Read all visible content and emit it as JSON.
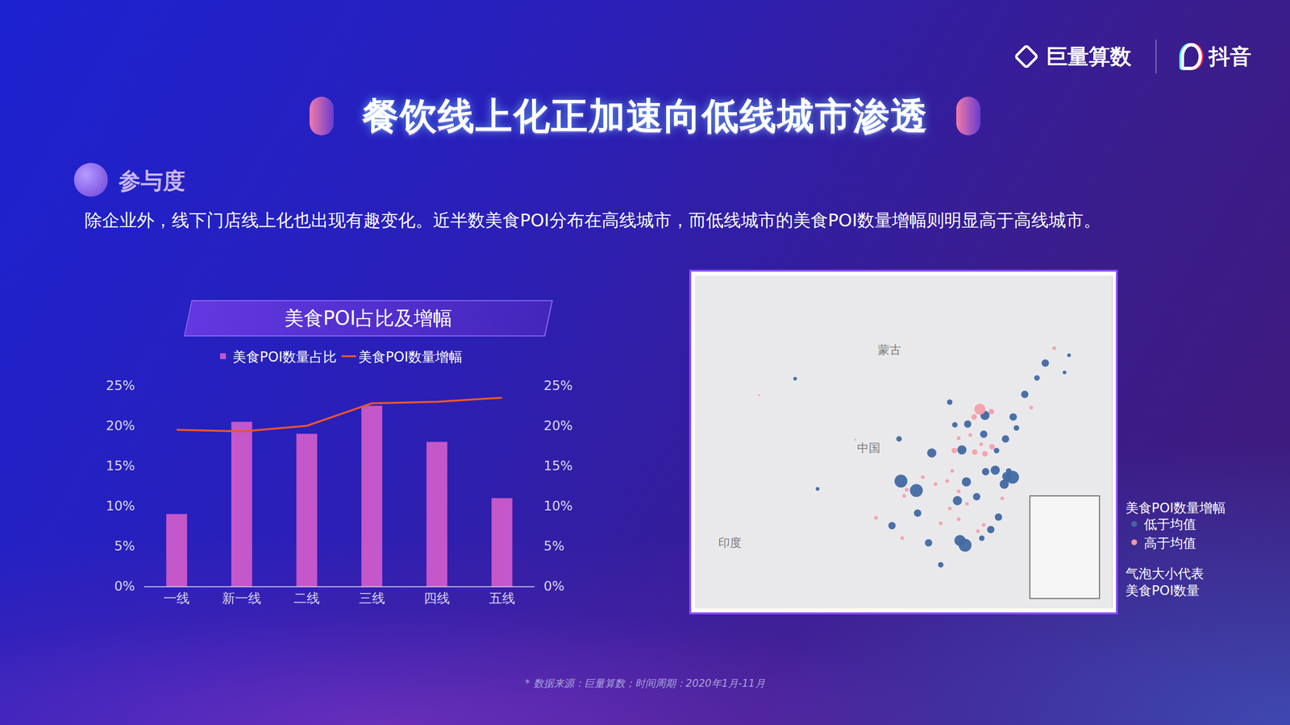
{
  "header": {
    "brands": [
      "巨量算数",
      "抖音"
    ],
    "title": "餐饮线上化正加速向低线城市渗透",
    "section": "参与度",
    "description": "除企业外，线下门店线上化也出现有趣变化。近半数美食POI分布在高线城市，而低线城市的美食POI数量增幅则明显高于高线城市。"
  },
  "chart_data": [
    {
      "type": "bar",
      "title": "美食POI占比及增幅",
      "categories": [
        "一线",
        "新一线",
        "二线",
        "三线",
        "四线",
        "五线"
      ],
      "series": [
        {
          "name": "美食POI数量占比",
          "type": "bar",
          "color": "#c457c9",
          "values": [
            9,
            20.5,
            19,
            22.5,
            18,
            11
          ]
        },
        {
          "name": "美食POI数量增幅",
          "type": "line",
          "color": "#e8562c",
          "axis": "y2",
          "values": [
            19.5,
            19.3,
            20,
            22.8,
            23,
            23.5
          ]
        }
      ],
      "ylim": [
        0,
        25
      ],
      "yticks": [
        {
          "value": 0,
          "label": "0%"
        },
        {
          "value": 5,
          "label": "5%"
        },
        {
          "value": 10,
          "label": "10%"
        },
        {
          "value": 15,
          "label": "15%"
        },
        {
          "value": 20,
          "label": "20%"
        },
        {
          "value": 25,
          "label": "25%"
        }
      ],
      "y2lim": [
        0,
        25
      ],
      "y2ticks": [
        {
          "value": 0,
          "label": "0%"
        },
        {
          "value": 5,
          "label": "5%"
        },
        {
          "value": 10,
          "label": "10%"
        },
        {
          "value": 15,
          "label": "15%"
        },
        {
          "value": 20,
          "label": "20%"
        },
        {
          "value": 25,
          "label": "25%"
        }
      ],
      "grid": false,
      "legend": "top"
    },
    {
      "type": "scatter",
      "marker": "bubble",
      "xlim": [
        72,
        137
      ],
      "ylim": [
        14.4,
        57
      ],
      "tick_labels": false,
      "grid": false,
      "legend": "right",
      "legend_title": "美食POI数量增幅",
      "size_note": [
        "气泡大小代表",
        "美食POI数量"
      ],
      "labels": [
        {
          "text": "蒙古",
          "x": 102.3,
          "y": 47.5
        },
        {
          "text": "中国",
          "x": 99.1,
          "y": 34.9
        },
        {
          "text": "印度",
          "x": 77.4,
          "y": 22.8
        }
      ],
      "series": [
        {
          "name": "低于均值",
          "color": "#4169a3",
          "x": [
            121.5,
            120.2,
            118.8,
            104.1,
            106.5,
            113.3,
            114.1,
            117.2,
            114.3,
            108.9,
            113.6,
            112.9,
            120.6,
            123.4,
            126.6,
            125.3,
            121.6,
            120.4,
            117.0,
            114.5,
            112.5,
            111.7,
            103.8,
            102.7,
            106.7,
            108.4,
            119.3,
            118.1,
            115.9,
            117.3,
            87.6,
            110.3,
            91.1,
            130.3,
            129.6,
            122.1,
            119.0,
            120.9,
            116.7
          ],
          "y": [
            31.2,
            30.3,
            32.1,
            30.7,
            29.5,
            23.1,
            22.5,
            39.1,
            30.6,
            34.3,
            34.7,
            28.2,
            31.3,
            41.8,
            45.8,
            43.9,
            38.9,
            36.1,
            36.7,
            38.0,
            37.9,
            40.8,
            36.1,
            25.0,
            26.6,
            22.8,
            26.1,
            24.5,
            28.7,
            31.9,
            43.8,
            20.0,
            29.7,
            46.8,
            44.6,
            37.5,
            34.6,
            32.0,
            23.4
          ],
          "size": [
            7,
            5,
            5,
            7,
            7,
            6,
            7,
            5,
            5,
            5,
            5,
            5,
            5,
            4,
            4,
            3,
            4,
            4,
            4,
            4,
            3,
            3,
            3,
            4,
            4,
            4,
            4,
            4,
            4,
            4,
            2,
            3,
            2,
            2,
            2,
            3,
            3,
            3,
            3
          ]
        },
        {
          "name": "高于均值",
          "color": "#f5a0aa",
          "x": [
            116.4,
            115.5,
            118.2,
            114.9,
            112.4,
            113.1,
            115.6,
            116.6,
            118.3,
            117.2,
            112.1,
            111.3,
            109.5,
            113.1,
            111.7,
            113.1,
            110.3,
            116.1,
            114.4,
            105.0,
            104.6,
            107.5,
            100.2,
            104.3,
            117.0,
            119.9,
            124.4,
            128.0,
            82.0,
            97.0
          ],
          "y": [
            39.9,
            38.9,
            39.6,
            36.6,
            34.6,
            36.2,
            34.4,
            35.4,
            35.1,
            34.2,
            32.0,
            30.7,
            30.3,
            29.4,
            27.2,
            25.8,
            25.3,
            24.3,
            27.8,
            29.6,
            28.8,
            31.2,
            26.0,
            23.4,
            25.1,
            28.5,
            40.1,
            47.7,
            41.7,
            36.0
          ],
          "size": [
            6,
            3,
            3,
            2,
            3,
            2,
            3,
            2,
            3,
            3,
            2,
            2,
            2,
            2,
            2,
            2,
            2,
            2,
            2,
            2,
            2,
            2,
            2,
            2,
            2,
            2,
            2,
            2,
            1,
            1
          ]
        }
      ]
    }
  ],
  "footnote": "* 数据来源：巨量算数；时间周期：2020年1月-11月"
}
